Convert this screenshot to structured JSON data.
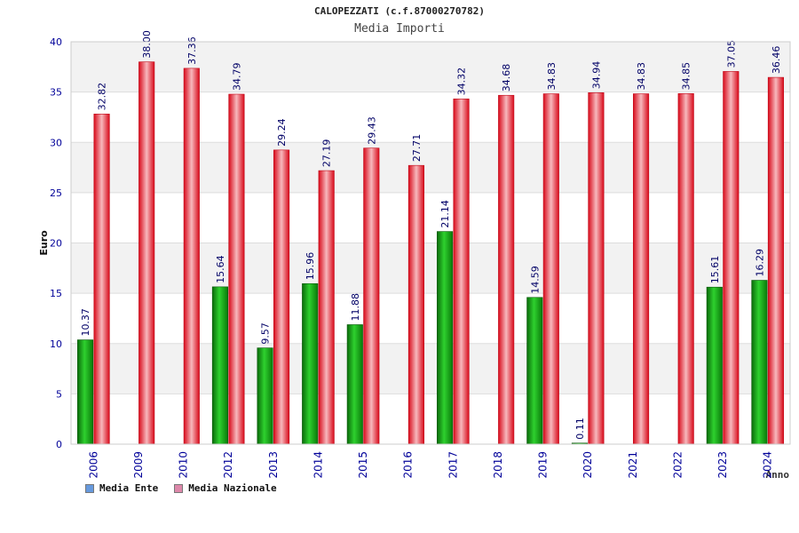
{
  "title": "CALOPEZZATI (c.f.87000270782)",
  "subtitle": "Media Importi",
  "colors": {
    "ente": "#1fa01f",
    "nazionale": "#e0202e",
    "ente_legend": "#6699dd",
    "nazionale_legend": "#dd88aa",
    "tick_label": "#000099",
    "value_label": "#000066"
  },
  "legend": [
    {
      "name": "Media Ente",
      "color": "#6699dd"
    },
    {
      "name": "Media Nazionale",
      "color": "#dd88aa"
    }
  ],
  "chart_data": {
    "type": "bar",
    "title": "CALOPEZZATI (c.f.87000270782)",
    "subtitle": "Media Importi",
    "xlabel": "Anno",
    "ylabel": "Euro",
    "ylim": [
      0,
      40
    ],
    "yticks": [
      0,
      5,
      10,
      15,
      20,
      25,
      30,
      35,
      40
    ],
    "grid": true,
    "legend_position": "bottom-left",
    "categories": [
      "2006",
      "2009",
      "2010",
      "2012",
      "2013",
      "2014",
      "2015",
      "2016",
      "2017",
      "2018",
      "2019",
      "2020",
      "2021",
      "2022",
      "2023",
      "2024"
    ],
    "series": [
      {
        "name": "Media Ente",
        "values": [
          10.37,
          null,
          null,
          15.64,
          9.57,
          15.96,
          11.88,
          null,
          21.14,
          null,
          14.59,
          0.11,
          null,
          null,
          15.61,
          16.29
        ]
      },
      {
        "name": "Media Nazionale",
        "values": [
          32.82,
          38.0,
          37.36,
          34.79,
          29.24,
          27.19,
          29.43,
          27.71,
          34.32,
          34.68,
          34.83,
          34.94,
          34.83,
          34.85,
          37.05,
          36.46
        ]
      }
    ],
    "value_labels": [
      [
        "10.37",
        null,
        null,
        "15.64",
        "9.57",
        "15.96",
        "11.88",
        null,
        "21.14",
        null,
        "14.59",
        "0.11",
        null,
        null,
        "15.61",
        "16.29"
      ],
      [
        "32.82",
        "38.00",
        "37.36",
        "34.79",
        "29.24",
        "27.19",
        "29.43",
        "27.71",
        "34.32",
        "34.68",
        "34.83",
        "34.94",
        "34.83",
        "34.85",
        "37.05",
        "36.46"
      ]
    ]
  }
}
